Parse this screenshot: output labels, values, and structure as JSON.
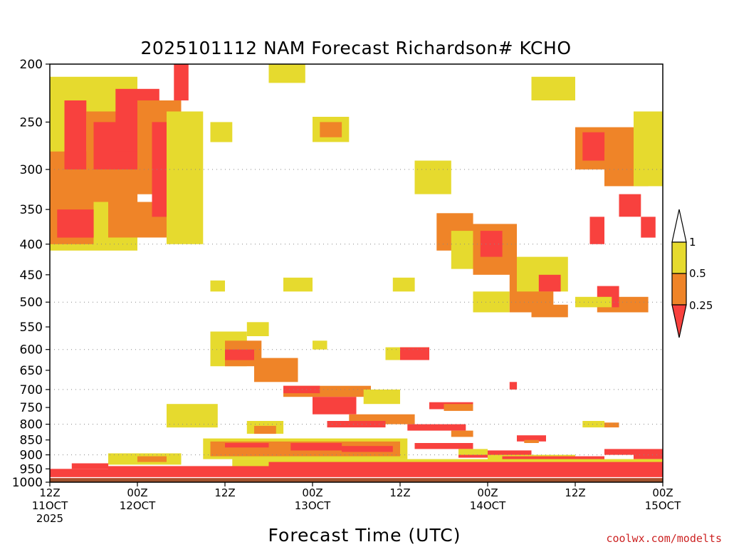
{
  "chart_data": {
    "type": "heatmap",
    "title": "2025101112 NAM Forecast Richardson# KCHO",
    "xlabel": "Forecast Time (UTC)",
    "credit": "coolwx.com/modelts",
    "ylim": [
      1000,
      200
    ],
    "y_ticks": [
      200,
      250,
      300,
      350,
      400,
      450,
      500,
      550,
      600,
      650,
      700,
      750,
      800,
      850,
      900,
      950,
      1000
    ],
    "gridlines_hPa": [
      300,
      400,
      500,
      600,
      700,
      800,
      900
    ],
    "x_range_hours": [
      0,
      84
    ],
    "x_ticks": [
      {
        "hour": 0,
        "time": "12Z",
        "date": "11OCT",
        "year": "2025"
      },
      {
        "hour": 12,
        "time": "00Z",
        "date": "12OCT",
        "year": ""
      },
      {
        "hour": 24,
        "time": "12Z",
        "date": "",
        "year": ""
      },
      {
        "hour": 36,
        "time": "00Z",
        "date": "13OCT",
        "year": ""
      },
      {
        "hour": 48,
        "time": "12Z",
        "date": "",
        "year": ""
      },
      {
        "hour": 60,
        "time": "00Z",
        "date": "14OCT",
        "year": ""
      },
      {
        "hour": 72,
        "time": "12Z",
        "date": "",
        "year": ""
      },
      {
        "hour": 84,
        "time": "00Z",
        "date": "15OCT",
        "year": ""
      }
    ],
    "legend": [
      {
        "label": "1",
        "color": "#ffffff"
      },
      {
        "label": "0.5",
        "color": "#e6da2e"
      },
      {
        "label": "0.25",
        "color": "#ef8428"
      },
      {
        "label": "",
        "color": "#f8413e"
      }
    ],
    "colors": {
      "ground": "#a0522d",
      "low": "#f8413e",
      "mid": "#ef8428",
      "high": "#e6da2e"
    },
    "ground_pressure": 985,
    "regions": [
      {
        "level": "high",
        "t": [
          0,
          12
        ],
        "p": [
          210,
          410
        ]
      },
      {
        "level": "mid",
        "t": [
          0,
          6
        ],
        "p": [
          280,
          400
        ]
      },
      {
        "level": "low",
        "t": [
          1,
          6
        ],
        "p": [
          350,
          390
        ]
      },
      {
        "level": "low",
        "t": [
          2,
          5
        ],
        "p": [
          230,
          300
        ]
      },
      {
        "level": "mid",
        "t": [
          5,
          12
        ],
        "p": [
          240,
          340
        ]
      },
      {
        "level": "low",
        "t": [
          6,
          14
        ],
        "p": [
          250,
          300
        ]
      },
      {
        "level": "mid",
        "t": [
          8,
          16
        ],
        "p": [
          340,
          390
        ]
      },
      {
        "level": "low",
        "t": [
          9,
          15
        ],
        "p": [
          220,
          280
        ]
      },
      {
        "level": "mid",
        "t": [
          12,
          18
        ],
        "p": [
          230,
          330
        ]
      },
      {
        "level": "low",
        "t": [
          14,
          18
        ],
        "p": [
          250,
          360
        ]
      },
      {
        "level": "high",
        "t": [
          16,
          21
        ],
        "p": [
          240,
          400
        ]
      },
      {
        "level": "low",
        "t": [
          17,
          19
        ],
        "p": [
          200,
          230
        ]
      },
      {
        "level": "high",
        "t": [
          22,
          25
        ],
        "p": [
          250,
          270
        ]
      },
      {
        "level": "high",
        "t": [
          30,
          35
        ],
        "p": [
          200,
          215
        ]
      },
      {
        "level": "high",
        "t": [
          36,
          41
        ],
        "p": [
          245,
          270
        ]
      },
      {
        "level": "mid",
        "t": [
          37,
          40
        ],
        "p": [
          250,
          265
        ]
      },
      {
        "level": "high",
        "t": [
          50,
          55
        ],
        "p": [
          290,
          330
        ]
      },
      {
        "level": "mid",
        "t": [
          53,
          58
        ],
        "p": [
          355,
          410
        ]
      },
      {
        "level": "high",
        "t": [
          55,
          60
        ],
        "p": [
          380,
          440
        ]
      },
      {
        "level": "mid",
        "t": [
          58,
          64
        ],
        "p": [
          370,
          450
        ]
      },
      {
        "level": "low",
        "t": [
          59,
          62
        ],
        "p": [
          380,
          420
        ]
      },
      {
        "level": "high",
        "t": [
          58,
          63
        ],
        "p": [
          480,
          520
        ]
      },
      {
        "level": "mid",
        "t": [
          63,
          69
        ],
        "p": [
          430,
          520
        ]
      },
      {
        "level": "high",
        "t": [
          64,
          71
        ],
        "p": [
          420,
          480
        ]
      },
      {
        "level": "low",
        "t": [
          67,
          70
        ],
        "p": [
          450,
          480
        ]
      },
      {
        "level": "mid",
        "t": [
          66,
          71
        ],
        "p": [
          505,
          530
        ]
      },
      {
        "level": "high",
        "t": [
          66,
          72
        ],
        "p": [
          210,
          230
        ]
      },
      {
        "level": "mid",
        "t": [
          72,
          80
        ],
        "p": [
          255,
          300
        ]
      },
      {
        "level": "low",
        "t": [
          73,
          76
        ],
        "p": [
          260,
          290
        ]
      },
      {
        "level": "mid",
        "t": [
          76,
          82
        ],
        "p": [
          280,
          320
        ]
      },
      {
        "level": "low",
        "t": [
          78,
          81
        ],
        "p": [
          330,
          360
        ]
      },
      {
        "level": "high",
        "t": [
          80,
          84
        ],
        "p": [
          240,
          320
        ]
      },
      {
        "level": "mid",
        "t": [
          75,
          82
        ],
        "p": [
          490,
          520
        ]
      },
      {
        "level": "low",
        "t": [
          75,
          78
        ],
        "p": [
          470,
          510
        ]
      },
      {
        "level": "high",
        "t": [
          72,
          77
        ],
        "p": [
          490,
          510
        ]
      },
      {
        "level": "low",
        "t": [
          74,
          76
        ],
        "p": [
          360,
          400
        ]
      },
      {
        "level": "low",
        "t": [
          81,
          83
        ],
        "p": [
          360,
          390
        ]
      },
      {
        "level": "high",
        "t": [
          22,
          24
        ],
        "p": [
          460,
          480
        ]
      },
      {
        "level": "high",
        "t": [
          32,
          36
        ],
        "p": [
          455,
          480
        ]
      },
      {
        "level": "high",
        "t": [
          47,
          50
        ],
        "p": [
          455,
          480
        ]
      },
      {
        "level": "high",
        "t": [
          22,
          27
        ],
        "p": [
          560,
          640
        ]
      },
      {
        "level": "mid",
        "t": [
          24,
          29
        ],
        "p": [
          580,
          640
        ]
      },
      {
        "level": "low",
        "t": [
          24,
          28
        ],
        "p": [
          600,
          625
        ]
      },
      {
        "level": "mid",
        "t": [
          28,
          34
        ],
        "p": [
          620,
          680
        ]
      },
      {
        "level": "high",
        "t": [
          27,
          30
        ],
        "p": [
          540,
          570
        ]
      },
      {
        "level": "high",
        "t": [
          36,
          38
        ],
        "p": [
          580,
          600
        ]
      },
      {
        "level": "high",
        "t": [
          46,
          52
        ],
        "p": [
          595,
          625
        ]
      },
      {
        "level": "low",
        "t": [
          48,
          52
        ],
        "p": [
          595,
          625
        ]
      },
      {
        "level": "low",
        "t": [
          63,
          64
        ],
        "p": [
          680,
          700
        ]
      },
      {
        "level": "mid",
        "t": [
          32,
          44
        ],
        "p": [
          690,
          720
        ]
      },
      {
        "level": "low",
        "t": [
          32,
          37
        ],
        "p": [
          690,
          710
        ]
      },
      {
        "level": "low",
        "t": [
          36,
          42
        ],
        "p": [
          720,
          770
        ]
      },
      {
        "level": "mid",
        "t": [
          41,
          50
        ],
        "p": [
          770,
          800
        ]
      },
      {
        "level": "low",
        "t": [
          38,
          46
        ],
        "p": [
          790,
          810
        ]
      },
      {
        "level": "high",
        "t": [
          43,
          48
        ],
        "p": [
          700,
          740
        ]
      },
      {
        "level": "low",
        "t": [
          52,
          58
        ],
        "p": [
          735,
          755
        ]
      },
      {
        "level": "mid",
        "t": [
          54,
          58
        ],
        "p": [
          740,
          760
        ]
      },
      {
        "level": "low",
        "t": [
          49,
          57
        ],
        "p": [
          800,
          820
        ]
      },
      {
        "level": "mid",
        "t": [
          55,
          58
        ],
        "p": [
          820,
          840
        ]
      },
      {
        "level": "high",
        "t": [
          16,
          23
        ],
        "p": [
          740,
          810
        ]
      },
      {
        "level": "high",
        "t": [
          27,
          32
        ],
        "p": [
          790,
          830
        ]
      },
      {
        "level": "mid",
        "t": [
          28,
          31
        ],
        "p": [
          805,
          830
        ]
      },
      {
        "level": "high",
        "t": [
          73,
          76
        ],
        "p": [
          790,
          810
        ]
      },
      {
        "level": "mid",
        "t": [
          76,
          78
        ],
        "p": [
          795,
          810
        ]
      },
      {
        "level": "low",
        "t": [
          64,
          68
        ],
        "p": [
          835,
          855
        ]
      },
      {
        "level": "mid",
        "t": [
          65,
          67
        ],
        "p": [
          850,
          860
        ]
      },
      {
        "level": "high",
        "t": [
          21,
          49
        ],
        "p": [
          845,
          915
        ]
      },
      {
        "level": "mid",
        "t": [
          22,
          48
        ],
        "p": [
          855,
          905
        ]
      },
      {
        "level": "low",
        "t": [
          24,
          30
        ],
        "p": [
          860,
          875
        ]
      },
      {
        "level": "low",
        "t": [
          33,
          40
        ],
        "p": [
          860,
          885
        ]
      },
      {
        "level": "low",
        "t": [
          40,
          47
        ],
        "p": [
          870,
          890
        ]
      },
      {
        "level": "low",
        "t": [
          50,
          58
        ],
        "p": [
          860,
          880
        ]
      },
      {
        "level": "low",
        "t": [
          56,
          66
        ],
        "p": [
          885,
          910
        ]
      },
      {
        "level": "high",
        "t": [
          56,
          60
        ],
        "p": [
          880,
          900
        ]
      },
      {
        "level": "high",
        "t": [
          8,
          18
        ],
        "p": [
          895,
          935
        ]
      },
      {
        "level": "mid",
        "t": [
          12,
          16
        ],
        "p": [
          905,
          925
        ]
      },
      {
        "level": "low",
        "t": [
          3,
          8
        ],
        "p": [
          930,
          950
        ]
      },
      {
        "level": "high",
        "t": [
          60,
          72
        ],
        "p": [
          900,
          925
        ]
      },
      {
        "level": "low",
        "t": [
          62,
          76
        ],
        "p": [
          905,
          925
        ]
      },
      {
        "level": "low",
        "t": [
          76,
          84
        ],
        "p": [
          880,
          900
        ]
      },
      {
        "level": "low",
        "t": [
          80,
          84
        ],
        "p": [
          895,
          915
        ]
      },
      {
        "level": "high",
        "t": [
          25,
          84
        ],
        "p": [
          915,
          945
        ]
      },
      {
        "level": "low",
        "t": [
          30,
          84
        ],
        "p": [
          925,
          945
        ]
      },
      {
        "level": "low",
        "t": [
          0,
          84
        ],
        "p": [
          950,
          985
        ]
      },
      {
        "level": "low",
        "t": [
          8,
          84
        ],
        "p": [
          940,
          965
        ]
      }
    ]
  }
}
